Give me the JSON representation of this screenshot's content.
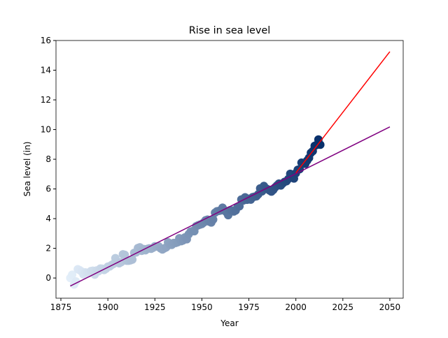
{
  "chart_data": {
    "type": "scatter",
    "title": "Rise in sea level",
    "x_label": "Year",
    "y_label": "Sea level (in)",
    "x": [
      1880,
      1881,
      1882,
      1883,
      1884,
      1885,
      1886,
      1887,
      1888,
      1889,
      1890,
      1891,
      1892,
      1893,
      1894,
      1895,
      1896,
      1897,
      1898,
      1899,
      1900,
      1901,
      1902,
      1903,
      1904,
      1905,
      1906,
      1907,
      1908,
      1909,
      1910,
      1911,
      1912,
      1913,
      1914,
      1915,
      1916,
      1917,
      1918,
      1919,
      1920,
      1921,
      1922,
      1923,
      1924,
      1925,
      1926,
      1927,
      1928,
      1929,
      1930,
      1931,
      1932,
      1933,
      1934,
      1935,
      1936,
      1937,
      1938,
      1939,
      1940,
      1941,
      1942,
      1943,
      1944,
      1945,
      1946,
      1947,
      1948,
      1949,
      1950,
      1951,
      1952,
      1953,
      1954,
      1955,
      1956,
      1957,
      1958,
      1959,
      1960,
      1961,
      1962,
      1963,
      1964,
      1965,
      1966,
      1967,
      1968,
      1969,
      1970,
      1971,
      1972,
      1973,
      1974,
      1975,
      1976,
      1977,
      1978,
      1979,
      1980,
      1981,
      1982,
      1983,
      1984,
      1985,
      1986,
      1987,
      1988,
      1989,
      1990,
      1991,
      1992,
      1993,
      1994,
      1995,
      1996,
      1997,
      1998,
      1999,
      2000,
      2001,
      2002,
      2003,
      2004,
      2005,
      2006,
      2007,
      2008,
      2009,
      2010,
      2011,
      2012,
      2013
    ],
    "values": [
      0.0,
      0.22,
      -0.44,
      -0.23,
      0.59,
      0.53,
      0.44,
      0.24,
      0.38,
      0.36,
      0.33,
      0.47,
      0.49,
      0.23,
      0.51,
      0.45,
      0.64,
      0.63,
      0.54,
      0.62,
      0.77,
      0.78,
      0.88,
      0.95,
      1.34,
      1.11,
      0.99,
      1.06,
      1.6,
      1.56,
      1.16,
      1.16,
      1.19,
      1.24,
      1.7,
      1.72,
      2.02,
      2.07,
      1.83,
      1.95,
      1.87,
      1.96,
      2.0,
      1.97,
      2.03,
      2.14,
      2.12,
      2.14,
      2.0,
      1.92,
      2.0,
      2.06,
      2.41,
      2.23,
      2.23,
      2.36,
      2.36,
      2.4,
      2.68,
      2.48,
      2.53,
      2.74,
      2.61,
      2.95,
      3.12,
      3.16,
      3.15,
      3.49,
      3.55,
      3.6,
      3.64,
      3.74,
      3.89,
      3.93,
      3.8,
      3.74,
      3.94,
      4.4,
      4.5,
      4.52,
      4.55,
      4.74,
      4.57,
      4.44,
      4.23,
      4.57,
      4.55,
      4.48,
      4.55,
      4.79,
      4.83,
      5.29,
      5.22,
      5.44,
      5.27,
      5.34,
      5.28,
      5.45,
      5.48,
      5.5,
      5.64,
      6.04,
      5.84,
      6.2,
      6.05,
      5.98,
      5.9,
      5.82,
      5.94,
      6.11,
      6.24,
      6.36,
      6.23,
      6.37,
      6.48,
      6.52,
      6.67,
      7.02,
      6.97,
      6.7,
      7.06,
      7.29,
      7.33,
      7.77,
      7.71,
      7.69,
      7.91,
      8.09,
      8.43,
      8.55,
      8.9,
      8.96,
      9.33,
      8.98
    ],
    "color_range": [
      "#e3eef9",
      "#08306b"
    ],
    "lines": [
      {
        "color": "#800080",
        "x": [
          1880,
          2050
        ],
        "values": [
          -0.54,
          10.18
        ]
      },
      {
        "color": "#ff0000",
        "x": [
          2000,
          2050
        ],
        "values": [
          7.08,
          15.25
        ]
      }
    ],
    "xlim": [
      1872.4,
      2057.1
    ],
    "xticks": [
      1875,
      1900,
      1925,
      1950,
      1975,
      2000,
      2025,
      2050
    ],
    "ylim": [
      -1.36,
      16
    ],
    "yticks": [
      0,
      2,
      4,
      6,
      8,
      10,
      12,
      14,
      16
    ]
  }
}
